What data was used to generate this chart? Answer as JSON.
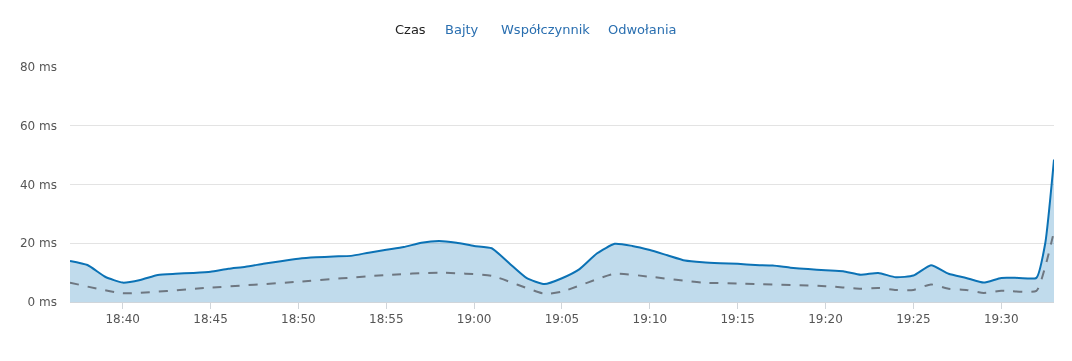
{
  "chart_data": {
    "type": "area",
    "annotations": [
      "Czas",
      "Bajty",
      "Współczynnik",
      "Odwołania"
    ],
    "series": [
      {
        "color": "#0b72b5",
        "x": [
          18.6167,
          18.6333,
          18.65,
          18.6667,
          18.6833,
          18.7,
          18.7167,
          18.7333,
          18.75,
          18.7667,
          18.7833,
          18.8,
          18.8167,
          18.8333,
          18.85,
          18.8667,
          18.8833,
          18.9,
          18.9167,
          18.9333,
          18.95,
          18.9667,
          18.9833,
          19,
          19.0167,
          19.0333,
          19.05,
          19.0667,
          19.0833,
          19.1,
          19.1167,
          19.1333,
          19.15,
          19.1667,
          19.1833,
          19.2,
          19.2167,
          19.2333,
          19.25,
          19.2667,
          19.2833,
          19.3,
          19.3167,
          19.3333,
          19.35,
          19.3667,
          19.3833,
          19.4,
          19.4167,
          19.4333,
          19.45,
          19.4667,
          19.4833,
          19.5,
          19.5167,
          19.5333,
          19.5417,
          19.55
        ],
        "values": [
          14,
          12.6,
          8.6,
          6.6,
          7.5,
          9.2,
          9.6,
          9.9,
          10.3,
          11.3,
          12,
          13,
          13.9,
          14.7,
          15.2,
          15.5,
          15.7,
          16.8,
          17.8,
          18.7,
          20.2,
          20.8,
          20.2,
          19.1,
          18.3,
          13.2,
          8.1,
          6.1,
          8.1,
          11.2,
          16.6,
          19.8,
          19.1,
          17.7,
          15.9,
          14.1,
          13.5,
          13.2,
          13,
          12.6,
          12.4,
          11.7,
          11.2,
          10.8,
          10.5,
          9.3,
          9.9,
          8.4,
          9,
          12.5,
          9.6,
          8.2,
          6.6,
          8.2,
          8.2,
          8.2,
          20,
          48.5
        ]
      },
      {
        "type": "line",
        "line_style": "dashed",
        "color": "#6e7781",
        "x": [
          18.6167,
          18.6667,
          18.75,
          18.8333,
          18.9167,
          18.9667,
          19.0167,
          19.0667,
          19.0833,
          19.1333,
          19.1667,
          19.2167,
          19.25,
          19.3333,
          19.3667,
          19.3833,
          19.4,
          19.4167,
          19.4333,
          19.45,
          19.4667,
          19.4833,
          19.5,
          19.5333,
          19.5417,
          19.55
        ],
        "values": [
          6.6,
          3,
          4.9,
          6.9,
          9.2,
          10,
          8.9,
          2.8,
          3.5,
          9.6,
          8.6,
          6.6,
          6.3,
          5.4,
          4.5,
          4.8,
          4.1,
          4.1,
          6,
          4.5,
          4.1,
          3.1,
          3.8,
          3.8,
          12,
          24
        ]
      }
    ],
    "xlim": [
      18.6167,
      19.55
    ],
    "xticks": [
      {
        "value": 18.6667,
        "label": "18:40"
      },
      {
        "value": 18.75,
        "label": "18:45"
      },
      {
        "value": 18.8333,
        "label": "18:50"
      },
      {
        "value": 18.9167,
        "label": "18:55"
      },
      {
        "value": 19,
        "label": "19:00"
      },
      {
        "value": 19.0833,
        "label": "19:05"
      },
      {
        "value": 19.1667,
        "label": "19:10"
      },
      {
        "value": 19.25,
        "label": "19:15"
      },
      {
        "value": 19.3333,
        "label": "19:20"
      },
      {
        "value": 19.4167,
        "label": "19:25"
      },
      {
        "value": 19.5,
        "label": "19:30"
      }
    ],
    "ylim": [
      0,
      80
    ],
    "yticks": [
      {
        "value": 0,
        "label": "0 ms"
      },
      {
        "value": 20,
        "label": "20 ms"
      },
      {
        "value": 40,
        "label": "40 ms"
      },
      {
        "value": 60,
        "label": "60 ms"
      },
      {
        "value": 80,
        "label": "80 ms"
      }
    ],
    "grid": "y",
    "legend": false,
    "marker": "none"
  }
}
